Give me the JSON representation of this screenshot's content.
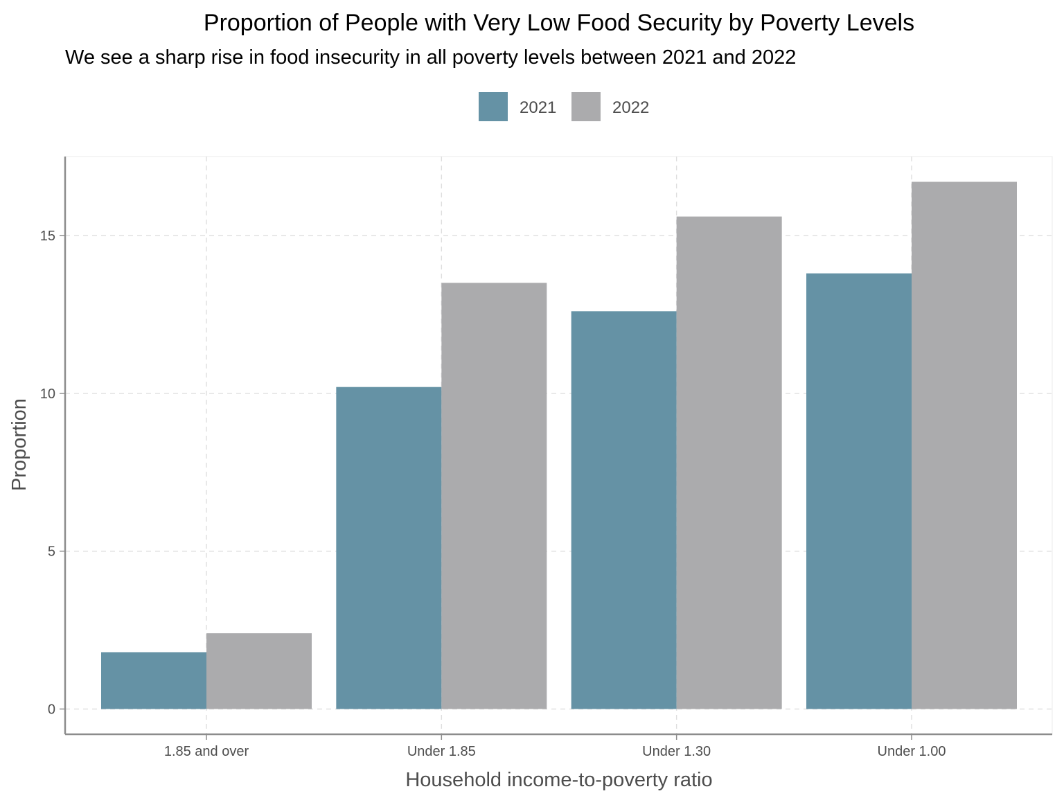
{
  "chart_data": {
    "type": "bar",
    "title": "Proportion of People with Very Low Food Security by Poverty Levels",
    "subtitle": "We see a sharp rise in food insecurity in all poverty levels between 2021 and 2022",
    "xlabel": "Household income-to-poverty ratio",
    "ylabel": "Proportion",
    "categories": [
      "1.85 and over",
      "Under 1.85",
      "Under 1.30",
      "Under 1.00"
    ],
    "series": [
      {
        "name": "2021",
        "values": [
          1.8,
          10.2,
          12.6,
          13.8
        ],
        "color": "#6592A5"
      },
      {
        "name": "2022",
        "values": [
          2.4,
          13.5,
          15.6,
          16.7
        ],
        "color": "#ABABAD"
      }
    ],
    "ylim": [
      -0.8,
      17.5
    ],
    "yticks": [
      "0",
      "5",
      "10",
      "15"
    ],
    "legend_position": "top",
    "grid": "dashed major gridlines"
  }
}
